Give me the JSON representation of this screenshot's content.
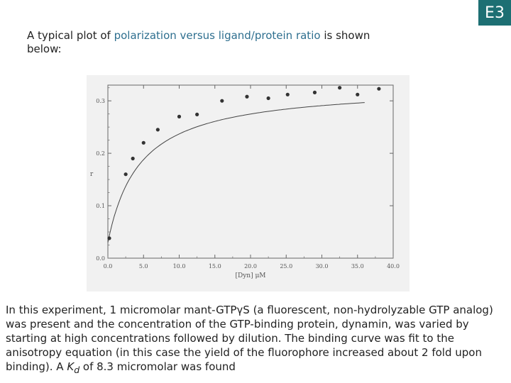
{
  "badge": "E3",
  "intro": {
    "before": "A typical plot of ",
    "highlight": "polarization versus ligand/protein ratio",
    "after": " is shown below:"
  },
  "chart_data": {
    "type": "scatter",
    "xlabel": "[Dyn] μM",
    "ylabel": "r",
    "xlim": [
      0,
      40
    ],
    "ylim": [
      0,
      0.33
    ],
    "x_ticks": [
      "0.0",
      "5.0",
      "10.0",
      "15.0",
      "20.0",
      "25.0",
      "30.0",
      "35.0",
      "40.0"
    ],
    "y_ticks": [
      "0.0",
      "0.1",
      "0.2",
      "0.3"
    ],
    "grid": false,
    "series": [
      {
        "points": [
          [
            0.2,
            0.038
          ],
          [
            2.5,
            0.16
          ],
          [
            3.5,
            0.19
          ],
          [
            5,
            0.22
          ],
          [
            7,
            0.245
          ],
          [
            10,
            0.27
          ],
          [
            12.5,
            0.274
          ],
          [
            16,
            0.3
          ],
          [
            19.5,
            0.308
          ],
          [
            22.5,
            0.305
          ],
          [
            25.2,
            0.312
          ],
          [
            29,
            0.316
          ],
          [
            32.5,
            0.325
          ],
          [
            35,
            0.312
          ],
          [
            38,
            0.323
          ]
        ],
        "fit_curve": {
          "model": "hyperbolic",
          "y0": 0.03,
          "ymax": 0.3,
          "k": 4.5,
          "x_range": [
            0,
            36
          ]
        }
      }
    ]
  },
  "caption": {
    "text_before_kd": "In this experiment, 1 micromolar mant-GTPγS (a fluorescent, non-hydrolyzable GTP analog) was present and the concentration of the GTP-binding protein, dynamin, was varied by starting at high concentrations followed by dilution. The binding curve was fit to the anisotropy equation (in this case the yield of the fluorophore increased about 2 fold upon binding). A ",
    "kd_symbol": "K",
    "kd_subscript": "d",
    "text_after_kd": " of 8.3 micromolar was found"
  }
}
